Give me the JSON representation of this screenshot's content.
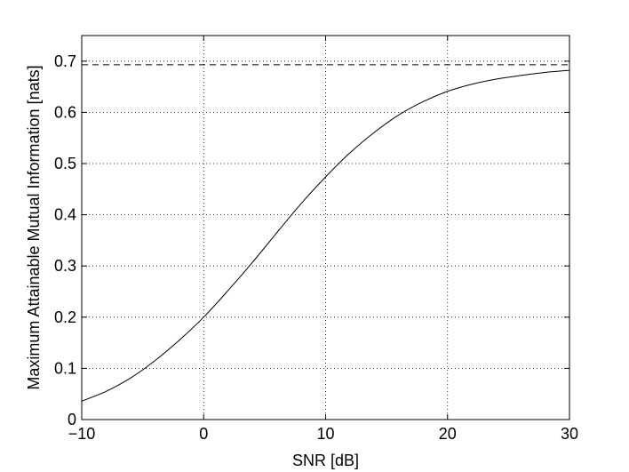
{
  "chart_data": {
    "type": "line",
    "title": "",
    "xlabel": "SNR [dB]",
    "ylabel": "Maximum Attainable Mutual Information [nats]",
    "xlim": [
      -10,
      30
    ],
    "ylim": [
      0,
      0.75
    ],
    "x_ticks": [
      -10,
      0,
      10,
      20,
      30
    ],
    "x_tick_labels": [
      "−10",
      "0",
      "10",
      "20",
      "30"
    ],
    "y_ticks": [
      0,
      0.1,
      0.2,
      0.3,
      0.4,
      0.5,
      0.6,
      0.7
    ],
    "y_tick_labels": [
      "0",
      "0.1",
      "0.2",
      "0.3",
      "0.4",
      "0.5",
      "0.6",
      "0.7"
    ],
    "grid": true,
    "legend": "none",
    "series": [
      {
        "style": "solid",
        "color": "#000000",
        "x": [
          -10,
          -8,
          -6,
          -4,
          -2,
          0,
          2,
          4,
          6,
          8,
          10,
          12,
          14,
          16,
          18,
          20,
          22,
          24,
          26,
          28,
          30
        ],
        "y": [
          0.036,
          0.055,
          0.081,
          0.115,
          0.155,
          0.2,
          0.252,
          0.307,
          0.365,
          0.422,
          0.474,
          0.521,
          0.561,
          0.595,
          0.621,
          0.641,
          0.655,
          0.665,
          0.672,
          0.678,
          0.682
        ]
      },
      {
        "style": "dashed",
        "color": "#000000",
        "x": [
          -10,
          30
        ],
        "y": [
          0.693,
          0.693
        ]
      }
    ]
  }
}
